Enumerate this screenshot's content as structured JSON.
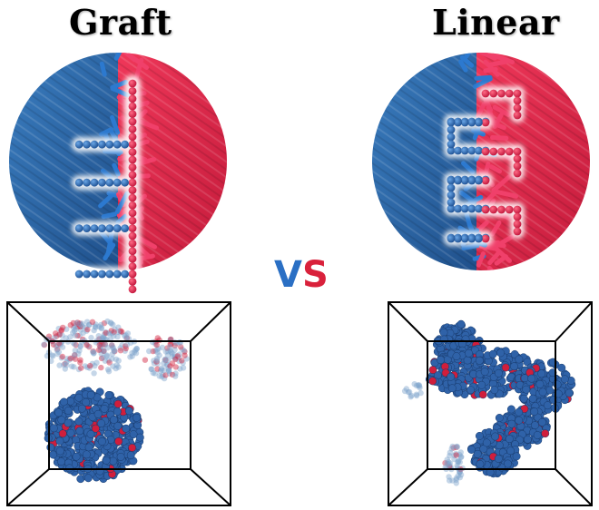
{
  "titles": {
    "left": "Graft",
    "right": "Linear"
  },
  "vs": {
    "v": "V",
    "s": "S"
  },
  "colors": {
    "blue": "#2e6aad",
    "red": "#e0294b",
    "box_line": "#000000"
  },
  "graft": {
    "backbone_beads": 28,
    "side_chains": 4,
    "side_chain_beads": 7
  },
  "linear": {
    "chain_beads": 66
  }
}
